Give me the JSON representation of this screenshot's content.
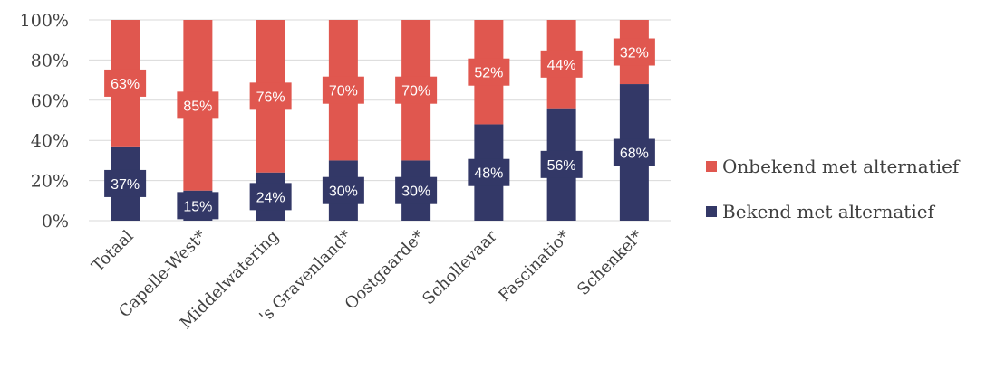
{
  "chart_data": {
    "type": "bar",
    "stacked": true,
    "percent": true,
    "categories": [
      "Totaal",
      "Capelle-West*",
      "Middelwatering",
      "'s Gravenland*",
      "Oostgaarde*",
      "Schollevaar",
      "Fascinatio*",
      "Schenkel*"
    ],
    "series": [
      {
        "name": "Bekend met alternatief",
        "color": "#333867",
        "values": [
          37,
          15,
          24,
          30,
          30,
          48,
          56,
          68
        ],
        "labels": [
          "37%",
          "15%",
          "24%",
          "30%",
          "30%",
          "48%",
          "56%",
          "68%"
        ]
      },
      {
        "name": "Onbekend met alternatief",
        "color": "#e0574f",
        "values": [
          63,
          85,
          76,
          70,
          70,
          52,
          44,
          32
        ],
        "labels": [
          "63%",
          "85%",
          "76%",
          "70%",
          "70%",
          "52%",
          "44%",
          "32%"
        ]
      }
    ],
    "yticks": [
      "0%",
      "20%",
      "40%",
      "60%",
      "80%",
      "100%"
    ],
    "ylim": [
      0,
      100
    ],
    "grid": true,
    "legend_position": "right"
  },
  "legend": {
    "items": [
      {
        "label": "Onbekend met alternatief",
        "color": "#e0574f"
      },
      {
        "label": "Bekend met alternatief",
        "color": "#333867"
      }
    ]
  }
}
